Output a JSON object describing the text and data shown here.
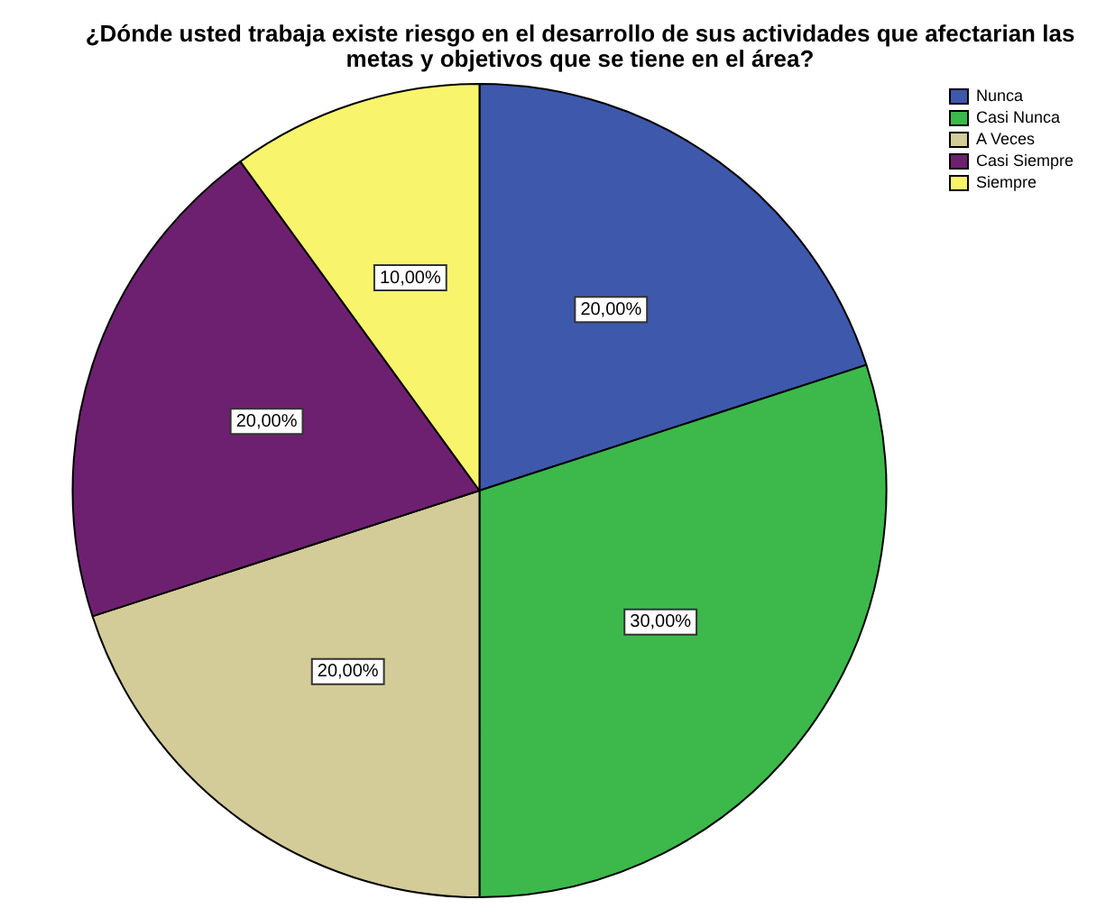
{
  "chart_data": {
    "type": "pie",
    "title": "¿Dónde usted trabaja existe riesgo en el desarrollo de sus actividades que afectarian las metas y objetivos que se tiene en el área?",
    "categories": [
      "Nunca",
      "Casi Nunca",
      "A Veces",
      "Casi Siempre",
      "Siempre"
    ],
    "values": [
      20,
      30,
      20,
      20,
      10
    ],
    "colors": [
      "#3e58ac",
      "#3cb94a",
      "#d3cc98",
      "#6e2070",
      "#f8f56c"
    ],
    "value_labels": [
      "20,00%",
      "30,00%",
      "20,00%",
      "20,00%",
      "10,00%"
    ],
    "legend": "top right"
  }
}
